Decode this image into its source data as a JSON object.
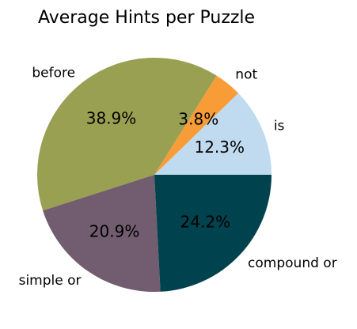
{
  "chart_data": {
    "type": "pie",
    "title": "Average Hints per Puzzle",
    "start_angle_deg": 0,
    "direction": "counterclockwise",
    "slices": [
      {
        "label": "is",
        "value": 12.3,
        "pct_text": "12.3%",
        "color": "#c0dbef"
      },
      {
        "label": "not",
        "value": 3.8,
        "pct_text": "3.8%",
        "color": "#f89c38"
      },
      {
        "label": "before",
        "value": 38.9,
        "pct_text": "38.9%",
        "color": "#9aa052"
      },
      {
        "label": "simple or",
        "value": 20.9,
        "pct_text": "20.9%",
        "color": "#725d70"
      },
      {
        "label": "compound or",
        "value": 24.2,
        "pct_text": "24.2%",
        "color": "#00424d"
      }
    ]
  }
}
